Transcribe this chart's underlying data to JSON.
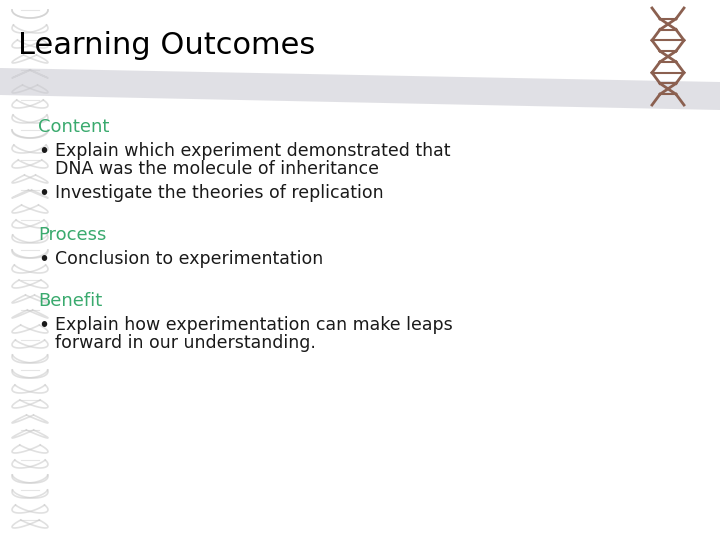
{
  "title": "Learning Outcomes",
  "title_fontsize": 22,
  "title_color": "#000000",
  "background_color": "#ffffff",
  "section_color": "#3aaa6e",
  "bullet_color": "#1a1a1a",
  "sections": [
    {
      "heading": "Content",
      "bullets": [
        "Explain which experiment demonstrated that\nDNA was the molecule of inheritance",
        "Investigate the theories of replication"
      ]
    },
    {
      "heading": "Process",
      "bullets": [
        "Conclusion to experimentation"
      ]
    },
    {
      "heading": "Benefit",
      "bullets": [
        "Explain how experimentation can make leaps\nforward in our understanding."
      ]
    }
  ],
  "heading_fontsize": 13,
  "bullet_fontsize": 12.5,
  "band_color": "#d0d0d8",
  "dna_left_color": "#c8c8cc",
  "dna_right_color": "#8b6050"
}
